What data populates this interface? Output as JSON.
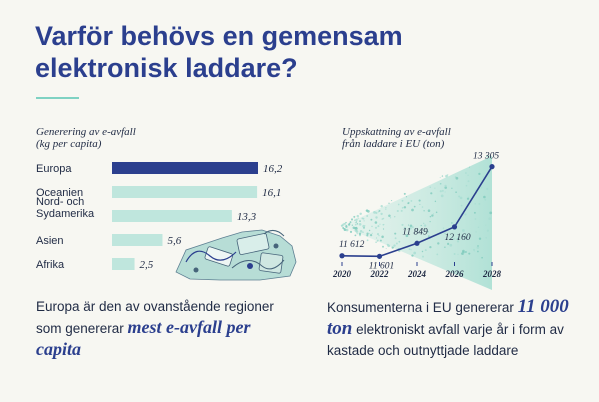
{
  "header": {
    "title": "Varför behövs en gemensam elektronisk laddare?"
  },
  "colors": {
    "title": "#2b3f8e",
    "highlight_bar": "#2b3f8e",
    "other_bars": "#bfe6dd",
    "accent_line": "#7fd2c3",
    "line": "#2b3f8e"
  },
  "bar_panel": {
    "title_line1": "Generering av e-avfall",
    "title_line2": "(kg per capita)",
    "caption_before": "Europa är den av ovanstående regioner som genererar ",
    "caption_highlight": "mest e-avfall per capita"
  },
  "line_panel": {
    "title_line1": "Uppskattning av e-avfall",
    "title_line2": "från laddare i EU (ton)",
    "caption_before": "Konsumenterna i EU genererar ",
    "caption_highlight": "11 000 ton",
    "caption_after": " elektroniskt avfall varje år i form av kastade och outnyttjade laddare"
  },
  "chart_data": [
    {
      "type": "bar",
      "orientation": "horizontal",
      "title": "Generering av e-avfall (kg per capita)",
      "categories": [
        "Europa",
        "Oceanien",
        "Nord- och Sydamerika",
        "Asien",
        "Afrika"
      ],
      "category_lines": [
        [
          "Europa"
        ],
        [
          "Oceanien"
        ],
        [
          "Nord- och",
          "Sydamerika"
        ],
        [
          "Asien"
        ],
        [
          "Afrika"
        ]
      ],
      "values": [
        16.2,
        16.1,
        13.3,
        5.6,
        2.5
      ],
      "value_labels": [
        "16,2",
        "16,1",
        "13,3",
        "5,6",
        "2,5"
      ],
      "highlight_index": 0,
      "xlim": [
        0,
        16.2
      ]
    },
    {
      "type": "line",
      "title": "Uppskattning av e-avfall från laddare i EU (ton)",
      "x": [
        2020,
        2022,
        2024,
        2026,
        2028
      ],
      "x_tick_labels": [
        "2020",
        "2022",
        "2024",
        "2026",
        "2028"
      ],
      "series": [
        {
          "x": [
            2020,
            2022,
            2024,
            2026,
            2028
          ],
          "values": [
            11612,
            11601,
            11849,
            12160,
            13305
          ],
          "value_labels": [
            "11 612",
            "11 601",
            "11 849",
            "12 160",
            "13 305"
          ]
        }
      ],
      "ylim": [
        11000,
        14000
      ],
      "grid": false,
      "legend": "none"
    }
  ]
}
